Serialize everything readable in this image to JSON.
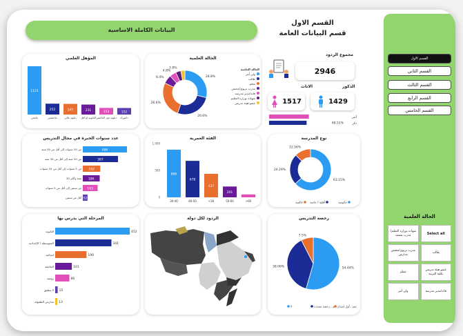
{
  "header": {
    "section_title": "القسم الاول",
    "subtitle": "قسم البيانات العامة",
    "main_button": "البيانات الكاملة الاساسية"
  },
  "sidebar": {
    "nav": [
      "القسم الاول",
      "القسم الثاني",
      "القسم الثالث",
      "القسم الرابع",
      "القسم الخامس"
    ],
    "filter_title": "الحالة العلمية",
    "filters": [
      "شهادة بوزارة التعليم/مدرب معتمد",
      "Select all",
      "مدرب تربوي/مختص مدارس",
      "طالب",
      "معلم",
      "عضو هيئة تدريس بكلية التربية",
      "ولي أمر",
      "قائد/مدير مدرسة"
    ]
  },
  "kpis": {
    "total_label": "مجموع الردود",
    "total_value": "2946",
    "female_label": "الاناث",
    "female_value": "1517",
    "male_label": "الذكور",
    "male_value": "1429",
    "gender_bar": {
      "female_label": "أنثى",
      "male_label": "ذكر",
      "female_pct": "51.49%",
      "male_pct": "48.51%",
      "female_value": 51.49,
      "male_value": 48.51
    }
  },
  "charts": {
    "education": {
      "title": "المؤهل العلمي",
      "categories": [
        "جامعي",
        "ماجستير",
        "دبلوم عالي",
        "الثانوية او اقل",
        "دبلوم دون الجامعي",
        "دكتوراه"
      ],
      "values": [
        1121,
        252,
        247,
        231,
        153,
        152
      ]
    },
    "status_pie": {
      "title": "الحالة العلمية",
      "legend_title": "الحالة العلمية",
      "legend": [
        "ولي أمر",
        "طالب",
        "معلم",
        "مدرب تربوي/مختص",
        "قائد/مدير مدرسة",
        "شهادة بوزارة التعليم",
        "عضو هيئة تدريس"
      ],
      "values": [
        28.8,
        26.6,
        26.6,
        6.4,
        4.8,
        3.8,
        3.0
      ],
      "labels": [
        "28.8%",
        "26.6%",
        "26.6%",
        "6.4%",
        "4.8%",
        "3.8%",
        ""
      ],
      "colors": [
        "#2b9cf2",
        "#1c2c96",
        "#e86f2e",
        "#6a1b9a",
        "#e14fb8",
        "#5b1f73",
        "#f2c12e"
      ]
    },
    "experience": {
      "title": "عدد سنوات الخبرة في مجال التدريس",
      "categories": [
        "من 10 سنوات إلى أقل من 20 سنة",
        "من 20 سنة إلى أقل من 30 سنة",
        "من 5 سنوات إلى أقل من 10 سنوات",
        "30 سنة وأكثر",
        "من سنتين إلى أقل من 5 سنوات",
        "أقل من سنتين"
      ],
      "values": [
        486,
        387,
        192,
        186,
        163,
        52
      ],
      "colors": [
        "#2b9cf2",
        "#1c2c96",
        "#e86f2e",
        "#6a1b9a",
        "#e14fb8",
        "#5b3fb0"
      ]
    },
    "age": {
      "title": "الفئة العمرية",
      "categories": [
        "30-40",
        "40-50",
        "<30",
        "50-60",
        ">60"
      ],
      "values": [
        886,
        678,
        437,
        201,
        54
      ],
      "yticks": [
        "1,000",
        "500",
        "0"
      ],
      "ylim": [
        0,
        1000
      ],
      "colors": [
        "#2b9cf2",
        "#1c2c96",
        "#e86f2e",
        "#6a1b9a",
        "#e14fb8"
      ]
    },
    "school_type": {
      "title": "نوع المدرسة",
      "values": [
        63.15,
        24.29,
        12.56
      ],
      "labels": [
        "63.15%",
        "24.29%",
        "12.56%"
      ],
      "legend": [
        "حكومية",
        "أهلية / خاصة",
        "عالمية"
      ],
      "colors": [
        "#2b9cf2",
        "#1c2c96",
        "#e86f2e"
      ]
    },
    "stage": {
      "title": "المرحلة التي يدرس بها",
      "categories": [
        "الثانوية",
        "المتوسطة / الإعدادية",
        "ابتدائية",
        "الجامعة",
        "روضة",
        "لا ينطبق",
        "مدارس الطفولة"
      ],
      "values": [
        452,
        341,
        190,
        101,
        86,
        15,
        13
      ],
      "colors": [
        "#2b9cf2",
        "#1c2c96",
        "#e86f2e",
        "#6a1b9a",
        "#e14fb8",
        "#5b3fb0",
        "#f2c12e"
      ]
    },
    "map": {
      "title": "الردود لكل دولة"
    },
    "license": {
      "title": "رخصة التدريس",
      "values": [
        54.44,
        38.06,
        7.5
      ],
      "labels": [
        "54.44%",
        "38.06%",
        "7.5%"
      ],
      "legend": [
        "لا",
        "نعم , رخصة مجددة",
        "نعم , أول إصدار"
      ],
      "colors": [
        "#2b9cf2",
        "#1c2c96",
        "#e86f2e"
      ]
    }
  }
}
